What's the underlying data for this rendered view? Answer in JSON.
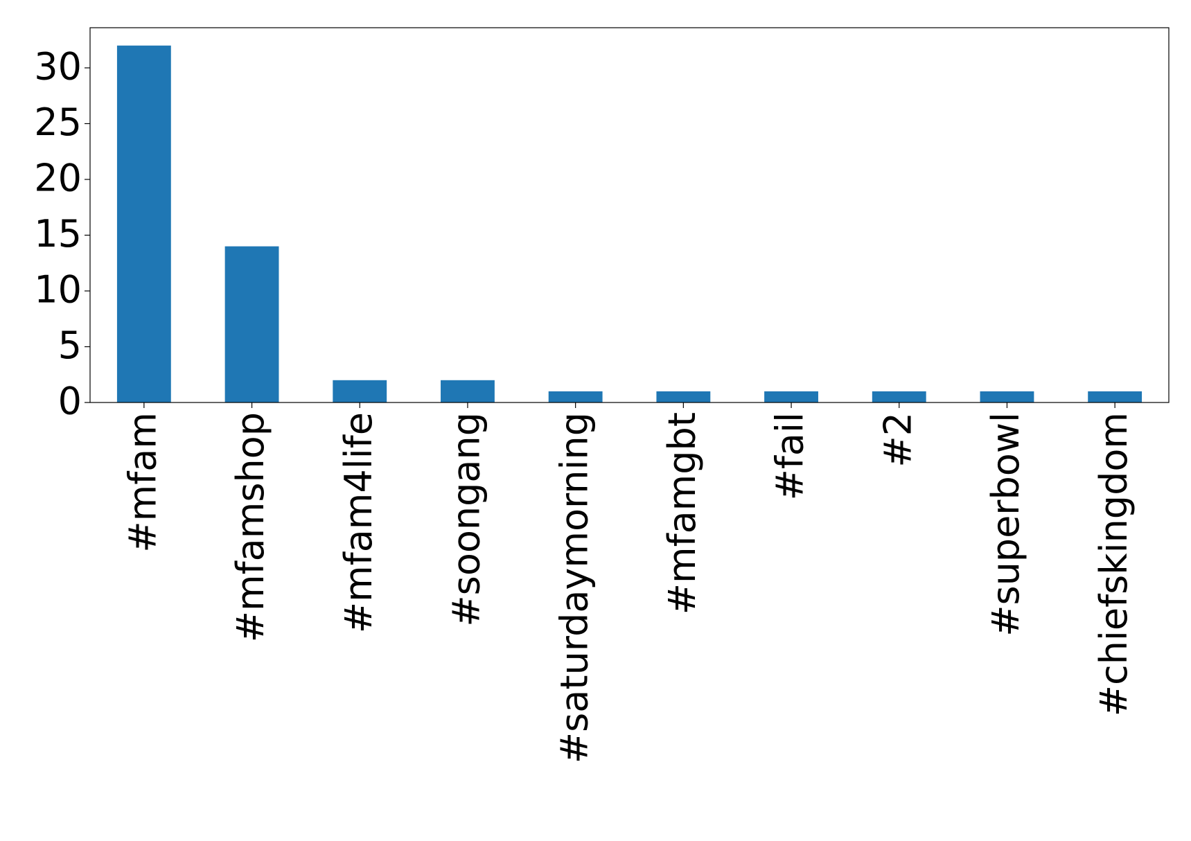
{
  "chart_data": {
    "type": "bar",
    "categories": [
      "#mfam",
      "#mfamshop",
      "#mfam4life",
      "#soongang",
      "#saturdaymorning",
      "#mfamgbt",
      "#fail",
      "#2",
      "#superbowl",
      "#chiefskingdom"
    ],
    "values": [
      32,
      14,
      2,
      2,
      1,
      1,
      1,
      1,
      1,
      1
    ],
    "color": "#1f77b4",
    "ylim": [
      0,
      33.6
    ],
    "yticks": [
      0,
      5,
      10,
      15,
      20,
      25,
      30
    ],
    "grid": false
  }
}
